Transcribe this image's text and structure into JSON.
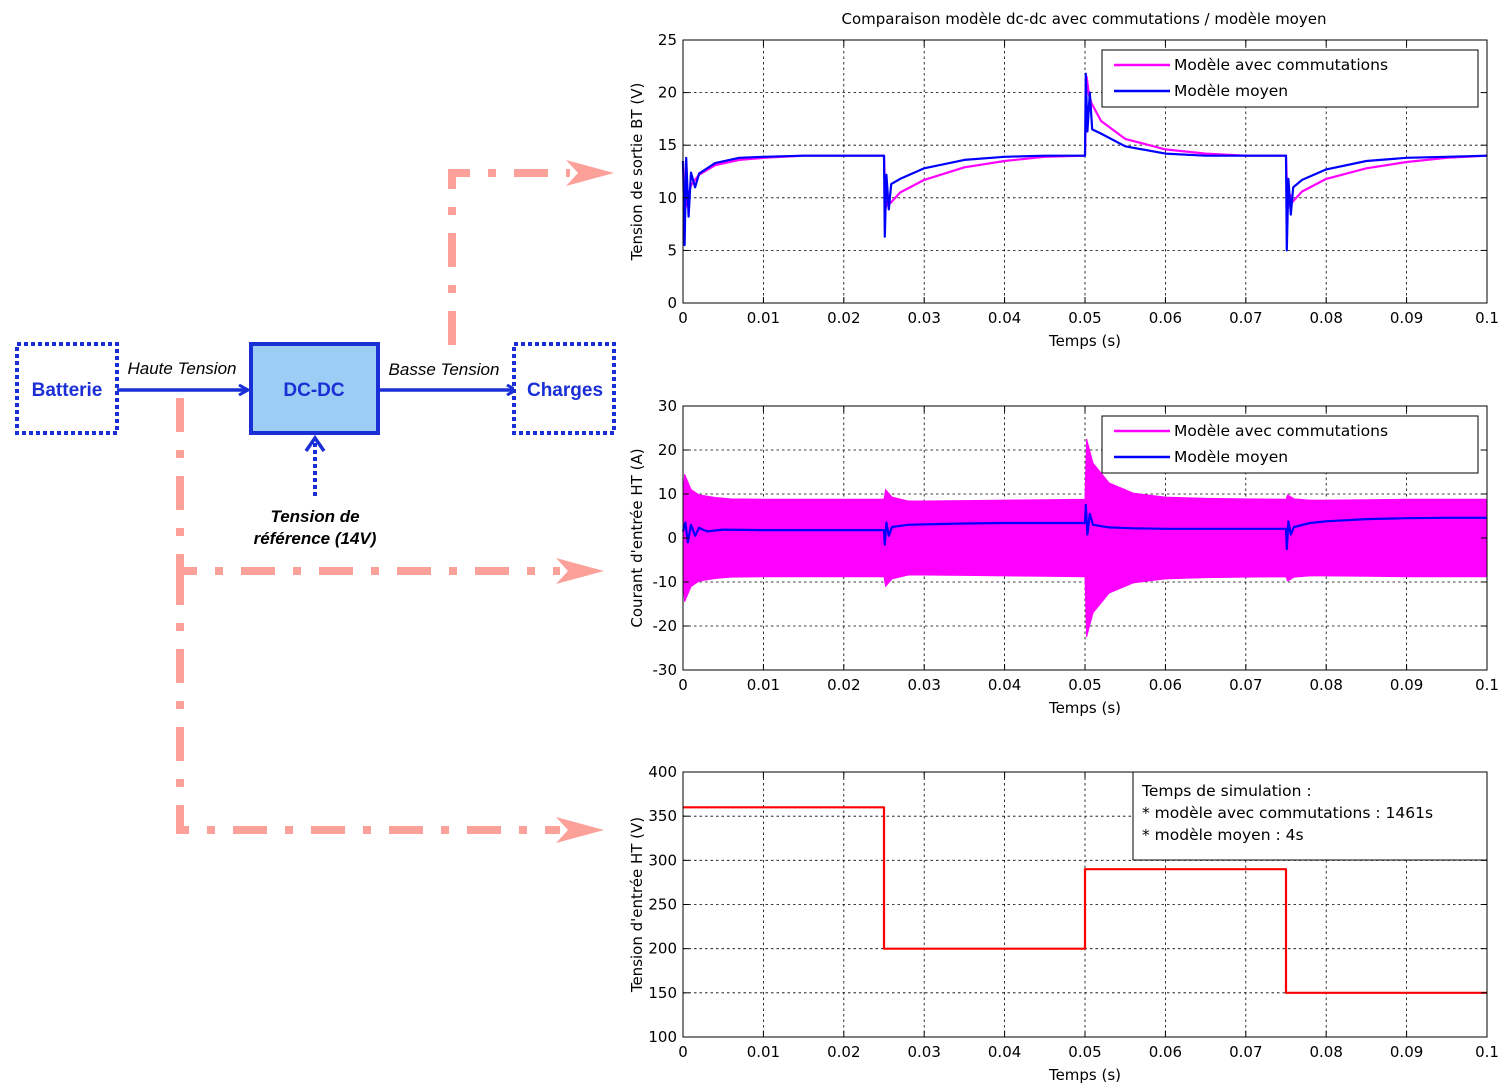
{
  "diagram": {
    "blocks": {
      "battery": "Batterie",
      "converter": "DC-DC",
      "loads": "Charges"
    },
    "edges": {
      "high_voltage": "Haute Tension",
      "low_voltage": "Basse Tension"
    },
    "reference": {
      "line1": "Tension de",
      "line2": "référence (14V)"
    },
    "colors": {
      "block_border": "#1a2fd6",
      "converter_fill": "#9ccdf5",
      "link_arrows": "#fca09a"
    }
  },
  "chart_data": [
    {
      "type": "line",
      "title": "Comparaison modèle dc-dc avec commutations / modèle moyen",
      "xlabel": "Temps (s)",
      "ylabel": "Tension de sortie BT (V)",
      "xlim": [
        0,
        0.1
      ],
      "ylim": [
        0,
        25
      ],
      "xticks": [
        "0",
        "0.01",
        "0.02",
        "0.03",
        "0.04",
        "0.05",
        "0.06",
        "0.07",
        "0.08",
        "0.09",
        "0.1"
      ],
      "yticks": [
        "0",
        "5",
        "10",
        "15",
        "20",
        "25"
      ],
      "grid": true,
      "legend_position": "top-right",
      "series": [
        {
          "name": "Modèle avec commutations",
          "color": "#ff00ff",
          "x": [
            0,
            0.0003,
            0.001,
            0.002,
            0.004,
            0.007,
            0.01,
            0.015,
            0.02,
            0.025,
            0.0252,
            0.0255,
            0.0258,
            0.027,
            0.03,
            0.035,
            0.04,
            0.045,
            0.05,
            0.0502,
            0.0505,
            0.0508,
            0.052,
            0.055,
            0.06,
            0.065,
            0.07,
            0.075,
            0.0752,
            0.0755,
            0.0758,
            0.077,
            0.08,
            0.085,
            0.09,
            0.095,
            0.1
          ],
          "y": [
            13.3,
            9,
            11.2,
            12.2,
            13.1,
            13.6,
            13.8,
            14,
            14,
            14,
            9,
            9.8,
            9.5,
            10.5,
            11.7,
            12.9,
            13.5,
            13.9,
            14,
            21.5,
            19.8,
            19,
            17.3,
            15.6,
            14.6,
            14.2,
            14,
            14,
            9,
            10.3,
            9.6,
            10.6,
            11.8,
            12.8,
            13.4,
            13.8,
            14
          ]
        },
        {
          "name": "Modèle moyen",
          "color": "#0000ff",
          "x": [
            0,
            0.0002,
            0.0004,
            0.0007,
            0.001,
            0.0015,
            0.002,
            0.004,
            0.007,
            0.01,
            0.015,
            0.02,
            0.025,
            0.0251,
            0.0253,
            0.0256,
            0.0259,
            0.027,
            0.03,
            0.035,
            0.04,
            0.045,
            0.05,
            0.0501,
            0.0503,
            0.0506,
            0.0509,
            0.052,
            0.055,
            0.06,
            0.065,
            0.07,
            0.075,
            0.0751,
            0.0753,
            0.0756,
            0.0759,
            0.077,
            0.08,
            0.085,
            0.09,
            0.095,
            0.1
          ],
          "y": [
            13.5,
            5.5,
            13.8,
            8.2,
            12.4,
            11,
            12.3,
            13.3,
            13.8,
            13.9,
            14,
            14,
            14,
            6.3,
            12.2,
            8.9,
            11.3,
            11.8,
            12.8,
            13.6,
            13.9,
            14,
            14,
            21.8,
            16.3,
            20,
            16.5,
            16.1,
            14.9,
            14.2,
            14,
            14,
            14,
            5,
            11.8,
            8.4,
            11,
            11.7,
            12.7,
            13.5,
            13.8,
            13.9,
            14
          ]
        }
      ]
    },
    {
      "type": "line",
      "title": "",
      "xlabel": "Temps (s)",
      "ylabel": "Courant d'entrée HT (A)",
      "xlim": [
        0,
        0.1
      ],
      "ylim": [
        -30,
        30
      ],
      "xticks": [
        "0",
        "0.01",
        "0.02",
        "0.03",
        "0.04",
        "0.05",
        "0.06",
        "0.07",
        "0.08",
        "0.09",
        "0.1"
      ],
      "yticks": [
        "-30",
        "-20",
        "-10",
        "0",
        "10",
        "20",
        "30"
      ],
      "grid": true,
      "legend_position": "top-right",
      "series": [
        {
          "name": "Modèle avec commutations",
          "color": "#ff00ff",
          "style": "switching-band",
          "x": [
            0,
            0.0002,
            0.001,
            0.002,
            0.004,
            0.006,
            0.01,
            0.015,
            0.02,
            0.025,
            0.0252,
            0.026,
            0.028,
            0.03,
            0.035,
            0.04,
            0.045,
            0.05,
            0.0502,
            0.051,
            0.053,
            0.056,
            0.06,
            0.065,
            0.07,
            0.075,
            0.0752,
            0.076,
            0.078,
            0.08,
            0.085,
            0.09,
            0.095,
            0.1
          ],
          "upper": [
            9,
            14.5,
            11,
            9.8,
            9.2,
            8.9,
            8.8,
            8.8,
            8.8,
            8.8,
            11,
            9.3,
            8.4,
            8.4,
            8.5,
            8.6,
            8.7,
            8.8,
            22.5,
            17,
            12.5,
            10.2,
            9.3,
            9,
            8.9,
            8.8,
            9.8,
            8.9,
            8.6,
            8.6,
            8.7,
            8.8,
            8.8,
            8.8
          ],
          "lower": [
            -9,
            -14.5,
            -11,
            -9.8,
            -9.2,
            -8.9,
            -8.8,
            -8.8,
            -8.8,
            -8.8,
            -11,
            -9.3,
            -8.4,
            -8.4,
            -8.5,
            -8.6,
            -8.7,
            -8.8,
            -22.5,
            -17,
            -12.5,
            -10.2,
            -9.3,
            -9,
            -8.9,
            -8.8,
            -9.8,
            -8.9,
            -8.6,
            -8.6,
            -8.7,
            -8.8,
            -8.8,
            -8.8
          ]
        },
        {
          "name": "Modèle moyen",
          "color": "#0000ff",
          "x": [
            0,
            0.0003,
            0.0006,
            0.001,
            0.0015,
            0.002,
            0.003,
            0.005,
            0.01,
            0.015,
            0.02,
            0.025,
            0.0251,
            0.0253,
            0.0256,
            0.026,
            0.028,
            0.03,
            0.035,
            0.04,
            0.045,
            0.05,
            0.0501,
            0.0503,
            0.0506,
            0.051,
            0.053,
            0.056,
            0.06,
            0.065,
            0.07,
            0.075,
            0.0751,
            0.0753,
            0.0756,
            0.076,
            0.078,
            0.08,
            0.085,
            0.09,
            0.095,
            0.1
          ],
          "y": [
            1.5,
            3.5,
            -1,
            3,
            0.5,
            2.3,
            1.5,
            1.9,
            1.8,
            1.8,
            1.8,
            1.8,
            -1.5,
            3.5,
            0.5,
            2.5,
            3,
            3.1,
            3.3,
            3.4,
            3.4,
            3.4,
            7.5,
            0.8,
            5.5,
            3,
            2.4,
            2.2,
            2.1,
            2.1,
            2.1,
            2.1,
            -2.5,
            3.8,
            0.8,
            2.5,
            3.4,
            3.8,
            4.3,
            4.5,
            4.6,
            4.6
          ]
        }
      ]
    },
    {
      "type": "line",
      "title": "",
      "xlabel": "Temps (s)",
      "ylabel": "Tension d'entrée HT (V)",
      "xlim": [
        0,
        0.1
      ],
      "ylim": [
        100,
        400
      ],
      "xticks": [
        "0",
        "0.01",
        "0.02",
        "0.03",
        "0.04",
        "0.05",
        "0.06",
        "0.07",
        "0.08",
        "0.09",
        "0.1"
      ],
      "yticks": [
        "100",
        "150",
        "200",
        "250",
        "300",
        "350",
        "400"
      ],
      "grid": true,
      "annotation": {
        "line1": "Temps de simulation :",
        "line2": "* modèle avec commutations : 1461s",
        "line3": "* modèle moyen : 4s"
      },
      "series": [
        {
          "color": "#ff0000",
          "x": [
            0,
            0.025,
            0.025,
            0.05,
            0.05,
            0.075,
            0.075,
            0.1
          ],
          "y": [
            360,
            360,
            200,
            200,
            290,
            290,
            150,
            150
          ]
        }
      ]
    }
  ]
}
